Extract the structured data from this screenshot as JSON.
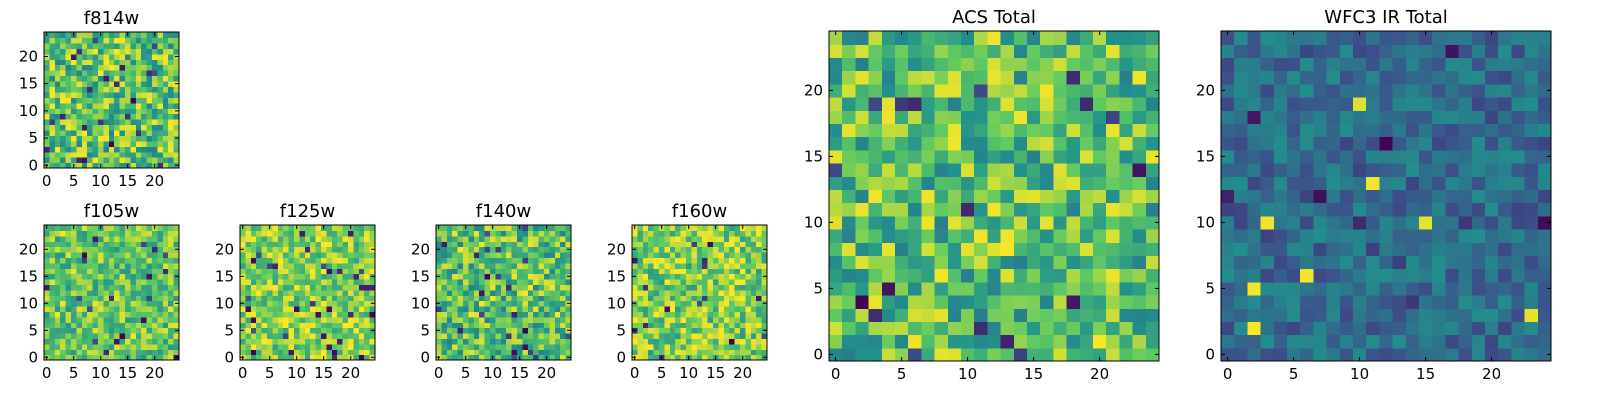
{
  "figure": {
    "colormap": "viridis",
    "colormap_stops": [
      "#440154",
      "#3b528b",
      "#21918c",
      "#5ec962",
      "#fde725"
    ]
  },
  "chart_data": [
    {
      "type": "heatmap",
      "title": "f814w",
      "grid": false,
      "shape": [
        25,
        25
      ],
      "origin": "lower",
      "xlim": [
        -0.5,
        24.5
      ],
      "ylim": [
        -0.5,
        24.5
      ],
      "xticks": [
        0,
        5,
        10,
        15,
        20
      ],
      "yticks": [
        0,
        5,
        10,
        15,
        20
      ],
      "value_range": [
        0,
        1
      ],
      "typical_level": 0.72,
      "variation": 0.28
    },
    {
      "type": "heatmap",
      "title": "f105w",
      "grid": false,
      "shape": [
        25,
        25
      ],
      "origin": "lower",
      "xlim": [
        -0.5,
        24.5
      ],
      "ylim": [
        -0.5,
        24.5
      ],
      "xticks": [
        0,
        5,
        10,
        15,
        20
      ],
      "yticks": [
        0,
        5,
        10,
        15,
        20
      ],
      "value_range": [
        0,
        1
      ],
      "typical_level": 0.74,
      "variation": 0.22
    },
    {
      "type": "heatmap",
      "title": "f125w",
      "grid": false,
      "shape": [
        25,
        25
      ],
      "origin": "lower",
      "xlim": [
        -0.5,
        24.5
      ],
      "ylim": [
        -0.5,
        24.5
      ],
      "xticks": [
        0,
        5,
        10,
        15,
        20
      ],
      "yticks": [
        0,
        5,
        10,
        15,
        20
      ],
      "value_range": [
        0,
        1
      ],
      "typical_level": 0.8,
      "variation": 0.22
    },
    {
      "type": "heatmap",
      "title": "f140w",
      "grid": false,
      "shape": [
        25,
        25
      ],
      "origin": "lower",
      "xlim": [
        -0.5,
        24.5
      ],
      "ylim": [
        -0.5,
        24.5
      ],
      "xticks": [
        0,
        5,
        10,
        15,
        20
      ],
      "yticks": [
        0,
        5,
        10,
        15,
        20
      ],
      "value_range": [
        0,
        1
      ],
      "typical_level": 0.7,
      "variation": 0.26
    },
    {
      "type": "heatmap",
      "title": "f160w",
      "grid": false,
      "shape": [
        25,
        25
      ],
      "origin": "lower",
      "xlim": [
        -0.5,
        24.5
      ],
      "ylim": [
        -0.5,
        24.5
      ],
      "xticks": [
        0,
        5,
        10,
        15,
        20
      ],
      "yticks": [
        0,
        5,
        10,
        15,
        20
      ],
      "value_range": [
        0,
        1
      ],
      "typical_level": 0.78,
      "variation": 0.24
    },
    {
      "type": "heatmap",
      "title": "ACS Total",
      "grid": false,
      "shape": [
        25,
        25
      ],
      "origin": "lower",
      "xlim": [
        -0.5,
        24.5
      ],
      "ylim": [
        -0.5,
        24.5
      ],
      "xticks": [
        0,
        5,
        10,
        15,
        20
      ],
      "yticks": [
        0,
        5,
        10,
        15,
        20
      ],
      "value_range": [
        0,
        1
      ],
      "typical_level": 0.7,
      "variation": 0.28
    },
    {
      "type": "heatmap",
      "title": "WFC3 IR Total",
      "grid": false,
      "shape": [
        25,
        25
      ],
      "origin": "lower",
      "xlim": [
        -0.5,
        24.5
      ],
      "ylim": [
        -0.5,
        24.5
      ],
      "xticks": [
        0,
        5,
        10,
        15,
        20
      ],
      "yticks": [
        0,
        5,
        10,
        15,
        20
      ],
      "value_range": [
        0,
        1
      ],
      "typical_level": 0.35,
      "variation": 0.14
    }
  ]
}
